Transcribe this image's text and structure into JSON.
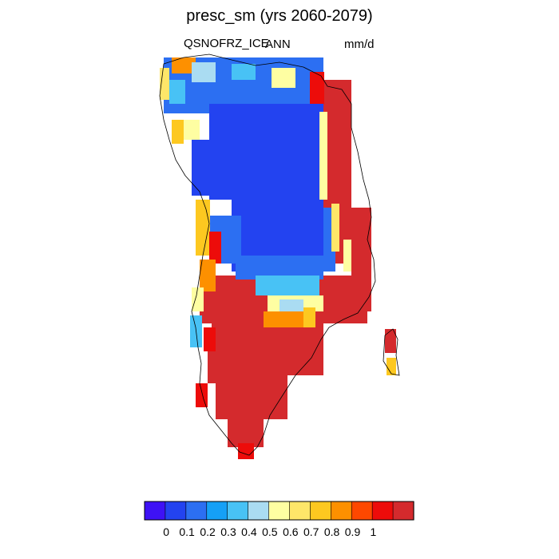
{
  "title": "presc_sm (yrs 2060-2079)",
  "left_label": "QSNOFRZ_ICE",
  "center_label": "ANN",
  "units": "mm/d",
  "colorbar": {
    "colors": [
      "#3e12f5",
      "#2343f0",
      "#2c6ff2",
      "#15a0f6",
      "#48c2f5",
      "#aadcf2",
      "#fefea2",
      "#fee669",
      "#fdc820",
      "#fd9000",
      "#fe4800",
      "#ed0c0a",
      "#d42a2d"
    ],
    "tick_labels": [
      "0",
      "0.1",
      "0.2",
      "0.3",
      "0.4",
      "0.5",
      "0.6",
      "0.7",
      "0.8",
      "0.9",
      "1"
    ]
  },
  "map_palette": {
    "deep_blue": "#2343f0",
    "mid_blue": "#2c6ff2",
    "light_blue": "#48c2f5",
    "pale_blue": "#aadcf2",
    "pale_yellow": "#fefea2",
    "yellow": "#fee669",
    "gold": "#fdc820",
    "orange": "#fd9000",
    "red": "#ed0c0a",
    "dark_red": "#d42a2d"
  }
}
